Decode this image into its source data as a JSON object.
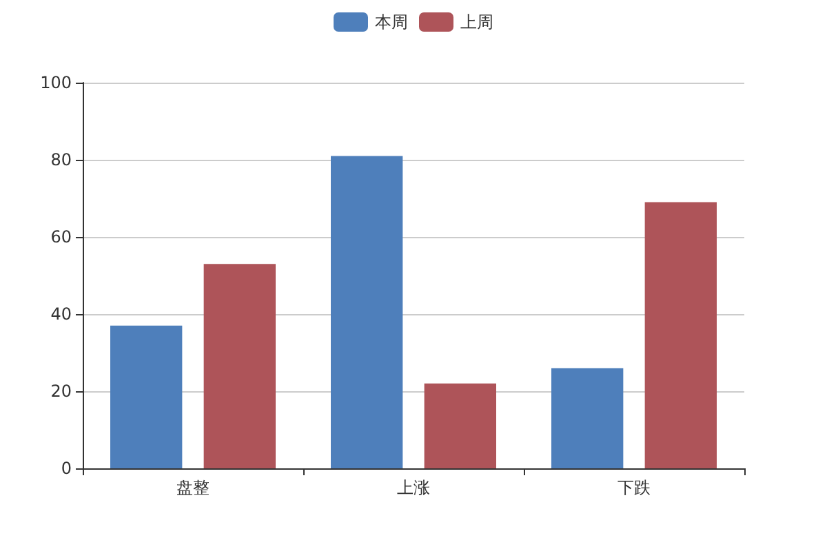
{
  "chart_data": {
    "type": "bar",
    "categories": [
      "盘整",
      "上涨",
      "下跌"
    ],
    "series": [
      {
        "name": "本周",
        "color": "#4e7fbb",
        "values": [
          37,
          81,
          26
        ]
      },
      {
        "name": "上周",
        "color": "#ae5459",
        "values": [
          53,
          22,
          69
        ]
      }
    ],
    "ylim": [
      0,
      100
    ],
    "yticks": [
      0,
      20,
      40,
      60,
      80,
      100
    ],
    "grid": "y",
    "legend": "top"
  }
}
